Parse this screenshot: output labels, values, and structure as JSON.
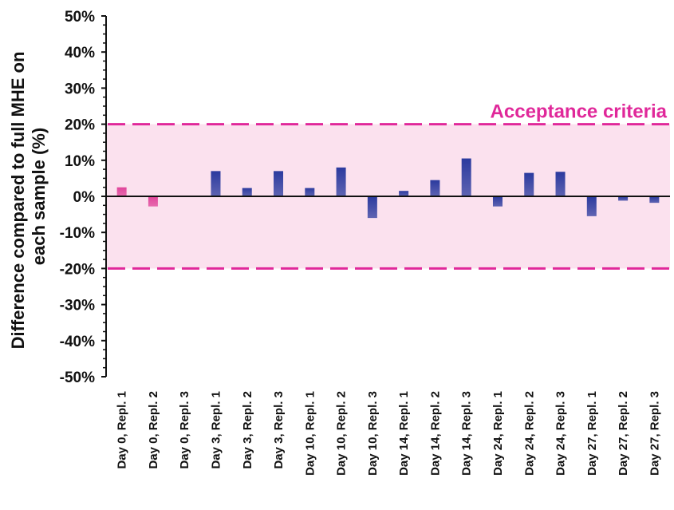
{
  "chart_data": {
    "type": "bar",
    "ylabel_line1": "Difference compared to full MHE on",
    "ylabel_line2": "each sample (%)",
    "ylim": [
      -50,
      50
    ],
    "yticks": [
      "-50%",
      "-40%",
      "-30%",
      "-20%",
      "-10%",
      "0%",
      "10%",
      "20%",
      "30%",
      "40%",
      "50%"
    ],
    "categories": [
      "Day 0, Repl. 1",
      "Day 0, Repl. 2",
      "Day 0, Repl. 3",
      "Day 3, Repl. 1",
      "Day 3, Repl. 2",
      "Day 3, Repl. 3",
      "Day 10, Repl. 1",
      "Day 10, Repl. 2",
      "Day 10, Repl. 3",
      "Day 14, Repl. 1",
      "Day 14, Repl. 2",
      "Day 14, Repl. 3",
      "Day 24, Repl. 1",
      "Day 24, Repl. 2",
      "Day 24, Repl. 3",
      "Day 27, Repl. 1",
      "Day 27, Repl. 2",
      "Day 27, Repl. 3"
    ],
    "values": [
      2.5,
      -2.8,
      0,
      7,
      2.3,
      7,
      2.3,
      8,
      -6,
      1.5,
      4.5,
      10.5,
      -2.8,
      6.5,
      6.8,
      -5.5,
      -1.2,
      -1.8
    ],
    "bar_colors": [
      "#e0449a",
      "#e0449a",
      "#3344a6",
      "#2b3a9e",
      "#2b3a9e",
      "#2b3a9e",
      "#2b3a9e",
      "#2b3a9e",
      "#2b3a9e",
      "#2b3a9e",
      "#2b3a9e",
      "#2b3a9e",
      "#2b3a9e",
      "#2b3a9e",
      "#2b3a9e",
      "#2b3a9e",
      "#2b3a9e",
      "#2b3a9e"
    ],
    "acceptance": {
      "label": "Acceptance criteria",
      "upper": 20,
      "lower": -20,
      "line_color": "#e0289a",
      "fill_color": "#fbe1ee"
    }
  }
}
